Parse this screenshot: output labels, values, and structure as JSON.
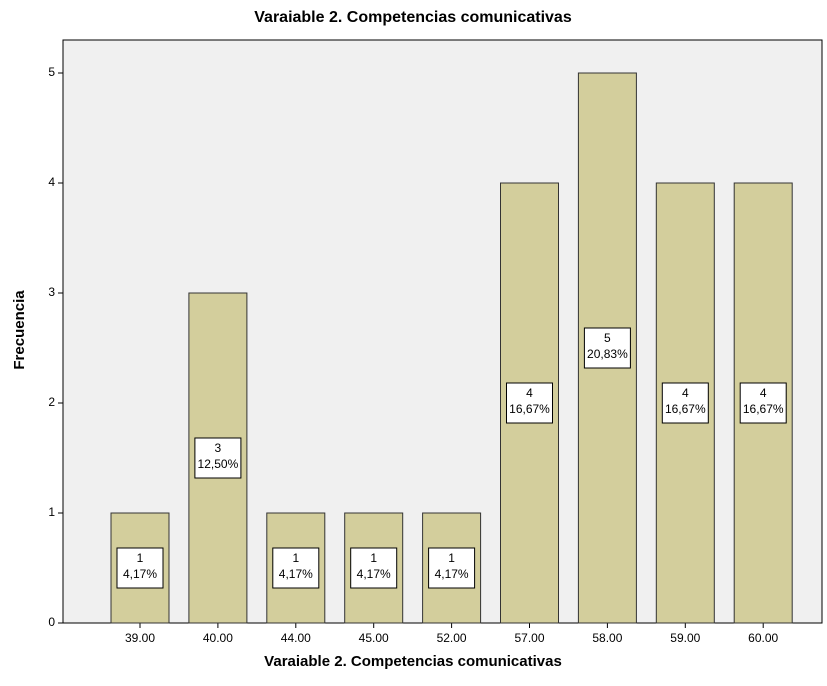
{
  "chart_data": {
    "type": "bar",
    "title": "Varaiable 2. Competencias comunicativas",
    "x_label": "Varaiable 2. Competencias comunicativas",
    "y_label": "Frecuencia",
    "categories": [
      "39.00",
      "40.00",
      "44.00",
      "45.00",
      "52.00",
      "57.00",
      "58.00",
      "59.00",
      "60.00"
    ],
    "values": [
      1,
      3,
      1,
      1,
      1,
      4,
      5,
      4,
      4
    ],
    "percent_labels": [
      "4,17%",
      "12,50%",
      "4,17%",
      "4,17%",
      "4,17%",
      "16,67%",
      "20,83%",
      "16,67%",
      "16,67%"
    ],
    "color": "#d3ce9c",
    "ylim": [
      0,
      5.3
    ],
    "yticks": [
      0,
      1,
      2,
      3,
      4,
      5
    ],
    "grid": false
  }
}
